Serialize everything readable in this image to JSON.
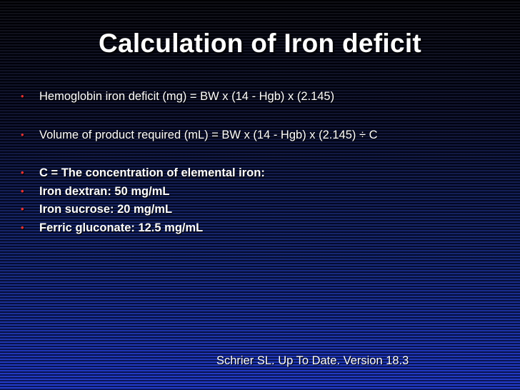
{
  "slide": {
    "title": "Calculation of Iron deficit",
    "bullets": [
      {
        "text": "Hemoglobin iron deficit (mg) = BW x (14 - Hgb) x (2.145)"
      },
      {
        "text": "Volume of product required (mL) = BW x (14 - Hgb) x (2.145) ÷ C"
      },
      {
        "text": "C = The concentration of elemental iron:"
      },
      {
        "text": "Iron dextran: 50 mg/mL"
      },
      {
        "text": "Iron sucrose: 20 mg/mL"
      },
      {
        "text": "Ferric gluconate: 12.5 mg/mL"
      }
    ],
    "bullet_glyph": "•",
    "citation": "Schrier SL. Up To Date. Version 18.3",
    "colors": {
      "bullet": "#e83030",
      "text": "#ffffff",
      "background_top": "#000006",
      "background_bottom": "#1530c8"
    }
  }
}
